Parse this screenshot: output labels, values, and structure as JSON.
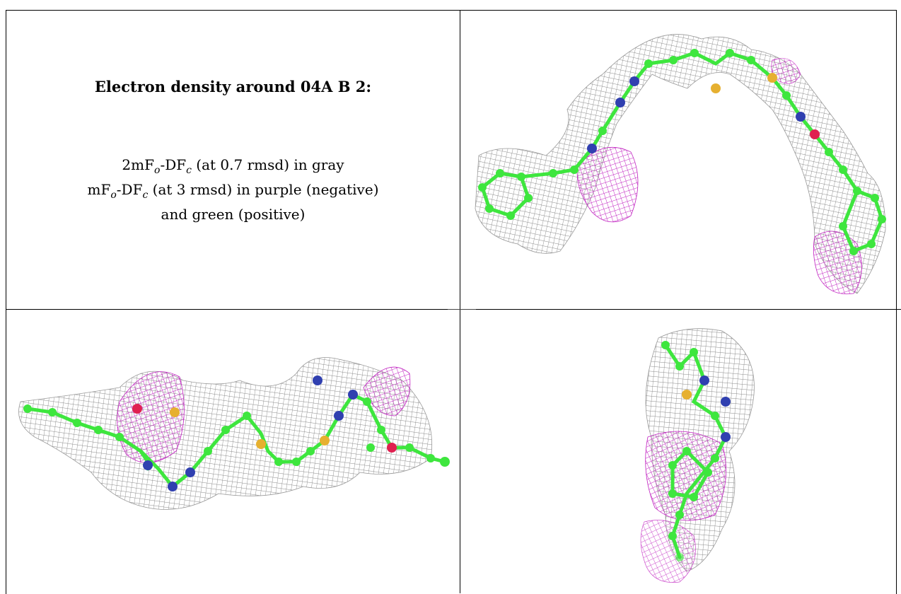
{
  "caption": {
    "title": "Electron density around 04A B 2:",
    "line1": {
      "a": "2mF",
      "sub1": "o",
      "b": "-DF",
      "sub2": "c",
      "c": " (at 0.7 rmsd) in gray"
    },
    "line2": {
      "a": "mF",
      "sub1": "o",
      "b": "-DF",
      "sub2": "c",
      "c": " (at 3 rmsd) in purple (negative)"
    },
    "line3": "and green (positive)"
  },
  "colors": {
    "mesh_2fofc": "#8a8a8a",
    "mesh_negative": "#c020c0",
    "mesh_positive": "#22cc22",
    "carbon": "#3ee63e",
    "nitrogen": "#3040b0",
    "sulfur": "#e6b030",
    "oxygen": "#e02050"
  },
  "panels": [
    {
      "name": "view-top-right"
    },
    {
      "name": "view-bottom-left"
    },
    {
      "name": "view-bottom-right"
    }
  ]
}
